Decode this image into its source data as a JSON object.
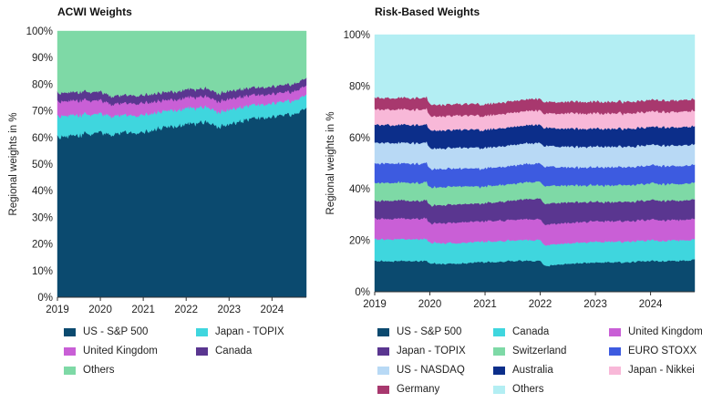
{
  "chart_data": [
    {
      "type": "area",
      "title": "ACWI Weights",
      "xlabel": "",
      "ylabel": "Regional weights in %",
      "ylim": [
        0,
        100
      ],
      "yticks": [
        "0%",
        "10%",
        "20%",
        "30%",
        "40%",
        "50%",
        "60%",
        "70%",
        "80%",
        "90%",
        "100%"
      ],
      "xlim": [
        2019,
        2024.8
      ],
      "xticks": [
        "2019",
        "2020",
        "2021",
        "2022",
        "2023",
        "2024"
      ],
      "legend_position": "bottom",
      "x": [
        2019.0,
        2019.5,
        2020.0,
        2020.25,
        2020.5,
        2021.0,
        2021.5,
        2022.0,
        2022.5,
        2022.75,
        2023.0,
        2023.5,
        2024.0,
        2024.5,
        2024.8
      ],
      "series": [
        {
          "name": "US - S&P 500",
          "color": "#0b4a6f",
          "values": [
            60,
            61,
            62,
            61,
            62,
            62,
            64,
            65,
            66,
            64,
            65,
            67,
            68,
            69,
            71
          ]
        },
        {
          "name": "Japan - TOPIX",
          "color": "#3fd6de",
          "values": [
            8,
            7.5,
            7,
            7,
            6.5,
            6.5,
            6,
            6,
            5.5,
            5.5,
            5.5,
            5,
            5,
            5,
            5
          ]
        },
        {
          "name": "United Kingdom",
          "color": "#c95fd6",
          "values": [
            5.5,
            5.5,
            5,
            4.5,
            4.5,
            4.5,
            4,
            4,
            4,
            4,
            4,
            3.8,
            3.5,
            3.5,
            3.5
          ]
        },
        {
          "name": "Canada",
          "color": "#5a3690",
          "values": [
            3.2,
            3.2,
            3.2,
            3,
            3,
            3,
            3,
            3,
            3,
            3,
            3,
            2.8,
            2.8,
            2.8,
            2.8
          ]
        },
        {
          "name": "Others",
          "color": "#7ed9a6",
          "values": [
            23.3,
            22.8,
            22.8,
            24.5,
            24,
            24,
            23,
            22,
            21.5,
            23.5,
            22.5,
            21.4,
            20.7,
            19.7,
            17.7
          ]
        }
      ]
    },
    {
      "type": "area",
      "title": "Risk-Based Weights",
      "xlabel": "",
      "ylabel": "Regional weights in %",
      "ylim": [
        0,
        100
      ],
      "yticks": [
        "0%",
        "20%",
        "40%",
        "60%",
        "80%",
        "100%"
      ],
      "xlim": [
        2019,
        2024.8
      ],
      "xticks": [
        "2019",
        "2020",
        "2021",
        "2022",
        "2023",
        "2024"
      ],
      "legend_position": "bottom",
      "x": [
        2019.0,
        2019.5,
        2019.95,
        2020.0,
        2020.5,
        2021.0,
        2021.5,
        2022.0,
        2022.1,
        2022.5,
        2023.0,
        2023.5,
        2024.0,
        2024.5,
        2024.8
      ],
      "series": [
        {
          "name": "US - S&P 500",
          "color": "#0b4a6f",
          "values": [
            12,
            12,
            12,
            11,
            11,
            11.5,
            12,
            12,
            10,
            11,
            11.5,
            11.5,
            12,
            12,
            12.5
          ]
        },
        {
          "name": "Canada",
          "color": "#3fd6de",
          "values": [
            8.5,
            8.5,
            8.5,
            8,
            8,
            8,
            8,
            8,
            8,
            8,
            8,
            8,
            8,
            8,
            8
          ]
        },
        {
          "name": "United Kingdom",
          "color": "#c95fd6",
          "values": [
            8,
            8,
            8,
            7.5,
            8,
            8,
            8,
            8,
            8,
            8,
            8,
            8,
            8,
            8,
            8
          ]
        },
        {
          "name": "Japan - TOPIX",
          "color": "#5a3690",
          "values": [
            7,
            7,
            7,
            7,
            7,
            7,
            7.5,
            8,
            8,
            8,
            7.5,
            7.5,
            7.5,
            7.5,
            7.5
          ]
        },
        {
          "name": "Switzerland",
          "color": "#7ed9a6",
          "values": [
            7,
            7,
            7,
            7,
            7,
            6.5,
            6.5,
            6.5,
            7,
            6.5,
            6.5,
            6.5,
            6.5,
            6.5,
            6.5
          ]
        },
        {
          "name": "EURO STOXX",
          "color": "#3d5be0",
          "values": [
            7.5,
            7.5,
            7.5,
            7,
            7,
            7,
            7,
            7,
            7.5,
            7,
            7,
            7,
            7,
            7,
            7
          ]
        },
        {
          "name": "US - NASDAQ",
          "color": "#b8d9f5",
          "values": [
            8,
            8,
            8,
            8,
            8,
            8,
            8,
            8,
            8,
            8,
            8,
            8,
            8,
            8,
            8
          ]
        },
        {
          "name": "Australia",
          "color": "#0c2e8a",
          "values": [
            7,
            7,
            7,
            7,
            7,
            7,
            7,
            7,
            7,
            7,
            7,
            7,
            7,
            7,
            7
          ]
        },
        {
          "name": "Japan - Nikkei",
          "color": "#f8b8d8",
          "values": [
            6,
            6,
            6,
            5.5,
            5.5,
            5.5,
            5.5,
            5.5,
            5.5,
            6,
            6,
            6,
            6,
            6,
            6
          ]
        },
        {
          "name": "Germany",
          "color": "#a8386e",
          "values": [
            4.5,
            4.5,
            4.5,
            4.5,
            4.5,
            4.5,
            4.5,
            4.5,
            4.5,
            4.5,
            4.5,
            4.5,
            4.5,
            4.5,
            4.5
          ]
        },
        {
          "name": "Others",
          "color": "#b3eef3",
          "values": [
            24.5,
            24.5,
            24.5,
            27.5,
            27,
            27,
            26,
            24.5,
            26.5,
            26,
            26,
            26,
            25.5,
            25.5,
            25
          ]
        }
      ]
    }
  ],
  "legends": [
    {
      "rows": [
        [
          "US - S&P 500",
          "Japan - TOPIX"
        ],
        [
          "United Kingdom",
          "Canada"
        ],
        [
          "Others"
        ]
      ]
    },
    {
      "rows": [
        [
          "US - S&P 500",
          "Canada",
          "United Kingdom"
        ],
        [
          "Japan - TOPIX",
          "Switzerland",
          "EURO STOXX"
        ],
        [
          "US - NASDAQ",
          "Australia",
          "Japan - Nikkei"
        ],
        [
          "Germany",
          "Others"
        ]
      ]
    }
  ]
}
